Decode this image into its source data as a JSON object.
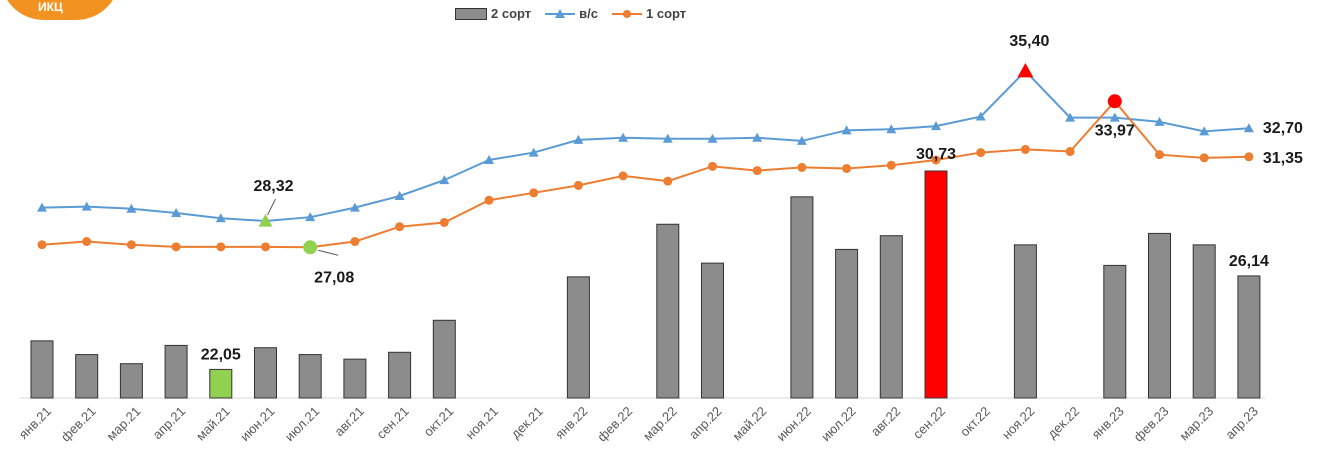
{
  "logo": {
    "text": "ИКЦ"
  },
  "legend": {
    "bars": "2 сорт",
    "vs": "в/с",
    "first": "1 сорт"
  },
  "colors": {
    "bars": "#8c8c8c",
    "vs": "#5b9bd5",
    "first": "#ed7d31",
    "highlight_max": "#ff0000",
    "highlight_min": "#92d050"
  },
  "chart_data": {
    "type": "bar+line",
    "categories": [
      "янв.21",
      "фев.21",
      "мар.21",
      "апр.21",
      "май.21",
      "июн.21",
      "июл.21",
      "авг.21",
      "сен.21",
      "окт.21",
      "ноя.21",
      "дек.21",
      "янв.22",
      "фев.22",
      "мар.22",
      "апр.22",
      "май.22",
      "июн.22",
      "июл.22",
      "авг.22",
      "сен.22",
      "окт.22",
      "ноя.22",
      "дек.22",
      "янв.23",
      "фев.23",
      "мар.23",
      "апр.23"
    ],
    "series": [
      {
        "name": "2 сорт",
        "type": "bar",
        "values": [
          23.3,
          22.7,
          22.3,
          23.1,
          22.05,
          23.0,
          22.7,
          22.5,
          22.8,
          24.2,
          null,
          null,
          26.1,
          null,
          28.4,
          26.7,
          null,
          29.6,
          27.3,
          27.9,
          30.73,
          null,
          27.5,
          null,
          26.6,
          28.0,
          27.5,
          26.14
        ]
      },
      {
        "name": "в/с",
        "type": "line",
        "values": [
          28.95,
          29.0,
          28.9,
          28.7,
          28.45,
          28.32,
          28.5,
          28.95,
          29.5,
          30.25,
          31.2,
          31.55,
          32.15,
          32.25,
          32.2,
          32.2,
          32.25,
          32.1,
          32.6,
          32.65,
          32.8,
          33.25,
          35.4,
          33.2,
          33.2,
          33.0,
          32.55,
          32.7
        ]
      },
      {
        "name": "1 сорт",
        "type": "line",
        "values": [
          27.2,
          27.35,
          27.2,
          27.1,
          27.1,
          27.1,
          27.08,
          27.35,
          28.05,
          28.25,
          29.3,
          29.65,
          30.0,
          30.45,
          30.2,
          30.9,
          30.7,
          30.85,
          30.8,
          30.95,
          31.2,
          31.55,
          31.7,
          31.6,
          33.97,
          31.45,
          31.3,
          31.35
        ]
      }
    ],
    "data_labels": [
      {
        "series": "2 сорт",
        "index": 4,
        "text": "22,05"
      },
      {
        "series": "2 сорт",
        "index": 20,
        "text": "30,73"
      },
      {
        "series": "2 сорт",
        "index": 27,
        "text": "26,14"
      },
      {
        "series": "в/с",
        "index": 5,
        "text": "28,32"
      },
      {
        "series": "в/с",
        "index": 22,
        "text": "35,40"
      },
      {
        "series": "в/с",
        "index": 27,
        "text": "32,70"
      },
      {
        "series": "1 сорт",
        "index": 6,
        "text": "27,08"
      },
      {
        "series": "1 сорт",
        "index": 24,
        "text": "33,97"
      },
      {
        "series": "1 сорт",
        "index": 27,
        "text": "31,35"
      }
    ],
    "highlights": {
      "bar_min_index": 4,
      "bar_max_index": 20,
      "vs_min_index": 5,
      "vs_max_index": 22,
      "first_min_index": 6,
      "first_max_index": 24
    },
    "grid": false,
    "legend_position": "top"
  }
}
